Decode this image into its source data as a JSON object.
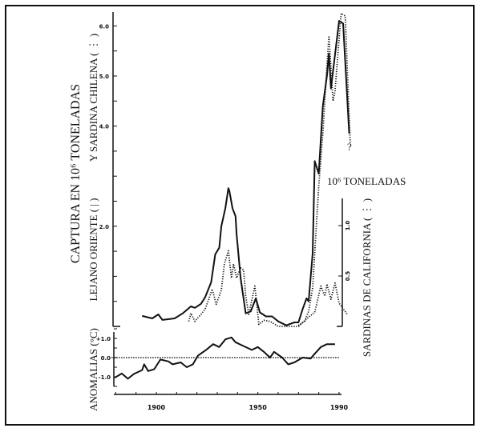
{
  "chart_data": [
    {
      "type": "line",
      "title": "",
      "ylabel": "CAPTURA EN 10⁶ TONELADAS",
      "ylabel_left_series": "LEJANO ORIENTE ( | )",
      "ylabel_chile_series": "Y SARDINA CHILENA ( ⋮ )",
      "ylim": [
        0,
        6.5
      ],
      "yticks": [
        "6.0",
        "5.0",
        "4.0",
        "2.0"
      ],
      "ytick_values": [
        6.0,
        5.0,
        4.0,
        2.0
      ],
      "annotation": "?",
      "series": [
        {
          "name": "LEJANO ORIENTE",
          "style": "solid",
          "x": [
            1893,
            1898,
            1901,
            1903,
            1909,
            1913,
            1917,
            1919,
            1922,
            1924,
            1927,
            1929,
            1931,
            1932,
            1934,
            1935.5,
            1936,
            1937.5,
            1939,
            1939.5,
            1941.5,
            1944,
            1946.5,
            1949,
            1951,
            1954,
            1957,
            1960,
            1964,
            1968,
            1970,
            1972,
            1974,
            1975,
            1977,
            1978,
            1980,
            1982,
            1984,
            1985,
            1986,
            1990,
            1992,
            1995
          ],
          "y": [
            0.21,
            0.16,
            0.24,
            0.13,
            0.16,
            0.26,
            0.4,
            0.37,
            0.45,
            0.58,
            0.88,
            1.44,
            1.57,
            2.0,
            2.36,
            2.76,
            2.7,
            2.36,
            2.2,
            1.85,
            0.97,
            0.26,
            0.3,
            0.56,
            0.28,
            0.2,
            0.2,
            0.1,
            0.02,
            0.08,
            0.08,
            0.34,
            0.56,
            0.5,
            1.46,
            3.3,
            3.05,
            4.4,
            5.0,
            5.45,
            4.75,
            6.1,
            6.05,
            3.85
          ]
        },
        {
          "name": "SARDINA CHILENA",
          "style": "dotted",
          "x": [
            1970,
            1973,
            1975,
            1977,
            1980,
            1982,
            1984,
            1985,
            1987,
            1988,
            1991,
            1993,
            1995.5
          ],
          "y": [
            0.02,
            0.1,
            0.3,
            0.77,
            2.8,
            3.85,
            5.2,
            5.8,
            4.5,
            4.7,
            6.25,
            6.2,
            3.65
          ]
        }
      ]
    },
    {
      "type": "line",
      "ylabel": "SARDINAS DE CALIFORNIA ( ⋮ )",
      "unit_label": "10⁶ TONELADAS",
      "ylim": [
        0,
        1.3
      ],
      "yticks": [
        "1.0",
        "0.5"
      ],
      "ytick_values": [
        1.0,
        0.5
      ],
      "series": [
        {
          "name": "SARDINAS DE CALIFORNIA",
          "style": "dotted",
          "x": [
            1916,
            1917,
            1919,
            1922,
            1924,
            1926,
            1927.5,
            1929.5,
            1932,
            1933.5,
            1935.5,
            1937,
            1938,
            1939.5,
            1941.5,
            1943,
            1944,
            1945.5,
            1948.5,
            1950.5,
            1953,
            1956,
            1960,
            1970,
            1975.5,
            1978,
            1981,
            1983,
            1984,
            1986,
            1988,
            1990,
            1994
          ],
          "y": [
            0.05,
            0.13,
            0.05,
            0.12,
            0.17,
            0.28,
            0.37,
            0.22,
            0.36,
            0.62,
            0.75,
            0.48,
            0.62,
            0.48,
            0.58,
            0.56,
            0.3,
            0.12,
            0.4,
            0.02,
            0.06,
            0.05,
            0.0,
            0.0,
            0.1,
            0.14,
            0.4,
            0.3,
            0.42,
            0.27,
            0.43,
            0.23,
            0.12
          ]
        }
      ]
    },
    {
      "type": "line",
      "ylabel": "ANOMALIAS (°C)",
      "ylim": [
        -1.5,
        1.5
      ],
      "yticks": [
        "+1.0",
        "0.0",
        "-1.0"
      ],
      "ytick_values": [
        1.0,
        0.0,
        -1.0
      ],
      "xlabel": "",
      "xticks": [
        "1900",
        "1950",
        "1990"
      ],
      "xtick_values": [
        1900,
        1950,
        1990
      ],
      "xlim": [
        1878,
        1998
      ],
      "series": [
        {
          "style": "solid",
          "x": [
            1879.5,
            1883,
            1886,
            1889,
            1893,
            1894,
            1896,
            1899,
            1902,
            1906,
            1908,
            1912,
            1915,
            1918,
            1920.5,
            1924.5,
            1928,
            1931,
            1934,
            1937,
            1939,
            1943,
            1947,
            1950,
            1953,
            1956,
            1958,
            1962,
            1965,
            1968,
            1972,
            1976,
            1978,
            1981,
            1984,
            1988
          ],
          "y": [
            -1.05,
            -0.83,
            -1.1,
            -0.85,
            -0.65,
            -0.35,
            -0.7,
            -0.6,
            -0.1,
            -0.2,
            -0.35,
            -0.25,
            -0.5,
            -0.35,
            0.1,
            0.4,
            0.7,
            0.55,
            0.95,
            1.05,
            0.8,
            0.6,
            0.4,
            0.55,
            0.3,
            0.0,
            0.3,
            0.0,
            -0.35,
            -0.25,
            0.0,
            -0.05,
            0.2,
            0.55,
            0.7,
            0.7
          ]
        },
        {
          "style": "dotted",
          "x": [
            1878,
            1990
          ],
          "y": [
            0,
            0
          ]
        }
      ]
    }
  ]
}
